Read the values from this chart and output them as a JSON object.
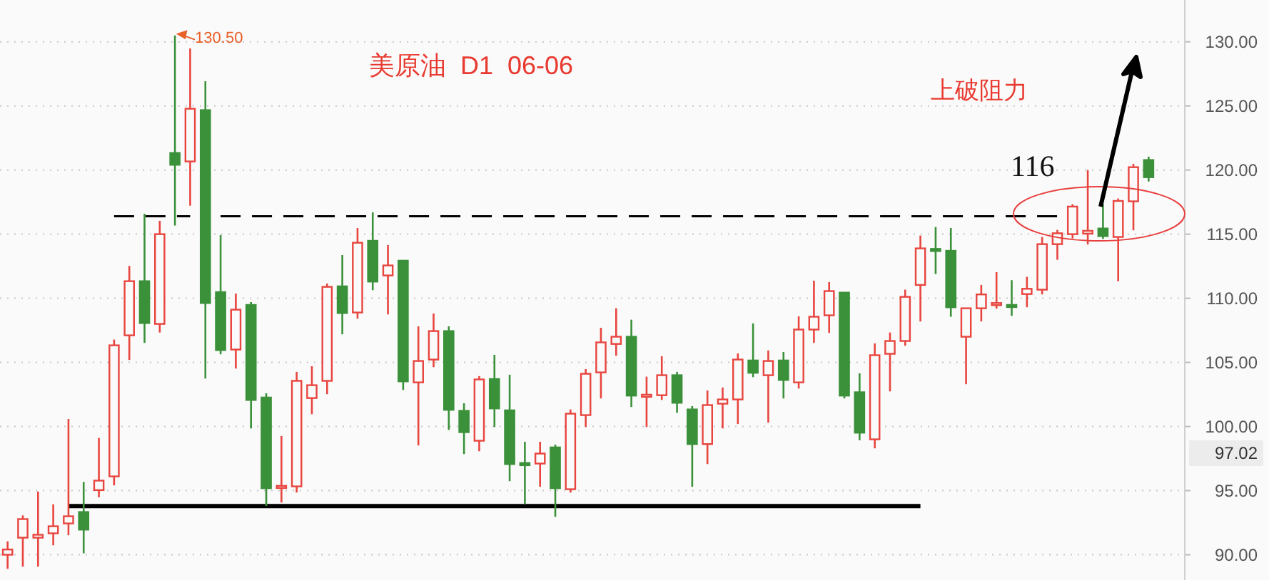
{
  "chart_data": {
    "type": "candlestick",
    "title": "美原油  D1  06-06",
    "categories": [
      null,
      null,
      null,
      null,
      null,
      null,
      null,
      null,
      null,
      null,
      null,
      null,
      null,
      null,
      null,
      null,
      null,
      null,
      null,
      null,
      null,
      null,
      null,
      null,
      null,
      null,
      null,
      null,
      null,
      null,
      null,
      null,
      null,
      null,
      null,
      null,
      null,
      null,
      null,
      null,
      null,
      null,
      null,
      null,
      null,
      null,
      null,
      null,
      null,
      null,
      null,
      null,
      null,
      null,
      null,
      null,
      null,
      null,
      null,
      null,
      null,
      null,
      null,
      null,
      null,
      null,
      null,
      null,
      null,
      null,
      null,
      null,
      null,
      null,
      null,
      null
    ],
    "ohlc": [
      [
        90.0,
        91.04,
        88.9,
        90.41
      ],
      [
        91.33,
        93.07,
        89.07,
        92.78
      ],
      [
        91.33,
        94.93,
        89.07,
        91.56
      ],
      [
        91.67,
        93.93,
        90.74,
        92.22
      ],
      [
        92.44,
        100.59,
        91.52,
        93.0
      ],
      [
        93.33,
        95.67,
        90.11,
        91.96
      ],
      [
        95.04,
        99.11,
        94.48,
        95.78
      ],
      [
        96.11,
        106.78,
        95.41,
        106.33
      ],
      [
        107.11,
        112.52,
        105.19,
        111.33
      ],
      [
        111.33,
        116.59,
        106.52,
        108.07
      ],
      [
        108.0,
        116.04,
        107.33,
        115.0
      ],
      [
        121.33,
        130.5,
        115.67,
        120.41
      ],
      [
        120.67,
        129.48,
        117.22,
        124.78
      ],
      [
        124.67,
        126.93,
        103.74,
        109.63
      ],
      [
        110.48,
        114.93,
        105.63,
        105.96
      ],
      [
        106.0,
        110.37,
        104.52,
        109.11
      ],
      [
        109.48,
        109.7,
        99.85,
        102.07
      ],
      [
        102.26,
        102.59,
        93.81,
        95.19
      ],
      [
        95.22,
        99.26,
        94.07,
        95.37
      ],
      [
        95.33,
        104.26,
        94.85,
        103.56
      ],
      [
        102.22,
        104.7,
        100.96,
        103.22
      ],
      [
        103.56,
        111.15,
        102.52,
        110.89
      ],
      [
        110.93,
        113.37,
        107.19,
        108.85
      ],
      [
        108.89,
        115.48,
        108.41,
        114.33
      ],
      [
        114.48,
        116.7,
        110.63,
        111.3
      ],
      [
        111.78,
        114.15,
        108.74,
        112.56
      ],
      [
        112.93,
        112.93,
        102.85,
        103.52
      ],
      [
        103.44,
        107.81,
        98.52,
        105.11
      ],
      [
        105.22,
        108.81,
        104.63,
        107.44
      ],
      [
        107.44,
        107.81,
        99.74,
        101.3
      ],
      [
        101.22,
        101.81,
        97.85,
        99.56
      ],
      [
        98.89,
        103.93,
        98.07,
        103.67
      ],
      [
        103.7,
        105.59,
        99.96,
        101.41
      ],
      [
        101.26,
        104.04,
        95.74,
        97.07
      ],
      [
        97.15,
        98.81,
        93.93,
        97.07
      ],
      [
        97.11,
        98.81,
        95.3,
        97.89
      ],
      [
        98.37,
        98.59,
        92.96,
        95.19
      ],
      [
        95.11,
        101.33,
        94.85,
        101.0
      ],
      [
        100.89,
        104.48,
        99.96,
        104.11
      ],
      [
        104.22,
        107.7,
        102.19,
        106.56
      ],
      [
        106.44,
        109.22,
        105.52,
        107.0
      ],
      [
        107.0,
        108.33,
        101.52,
        102.41
      ],
      [
        102.33,
        103.89,
        99.96,
        102.48
      ],
      [
        102.44,
        105.48,
        102.07,
        104.0
      ],
      [
        104.0,
        104.26,
        101.07,
        101.85
      ],
      [
        101.33,
        101.59,
        95.3,
        98.63
      ],
      [
        98.63,
        102.81,
        97.07,
        101.67
      ],
      [
        101.78,
        103.04,
        99.85,
        102.11
      ],
      [
        102.11,
        105.7,
        100.19,
        105.22
      ],
      [
        105.15,
        108.04,
        103.85,
        104.19
      ],
      [
        104.0,
        105.93,
        100.3,
        105.11
      ],
      [
        105.15,
        105.81,
        102.19,
        103.63
      ],
      [
        103.44,
        108.59,
        102.96,
        107.56
      ],
      [
        107.56,
        111.37,
        106.52,
        108.56
      ],
      [
        108.67,
        111.26,
        107.3,
        110.56
      ],
      [
        110.44,
        110.44,
        102.19,
        102.41
      ],
      [
        102.67,
        104.15,
        98.93,
        99.52
      ],
      [
        99.0,
        106.48,
        98.3,
        105.56
      ],
      [
        105.67,
        107.33,
        102.74,
        106.67
      ],
      [
        106.67,
        110.67,
        106.3,
        110.11
      ],
      [
        111.04,
        114.89,
        108.19,
        113.89
      ],
      [
        113.85,
        115.56,
        111.89,
        113.74
      ],
      [
        113.7,
        115.48,
        108.56,
        109.3
      ],
      [
        107.0,
        109.22,
        103.3,
        109.22
      ],
      [
        109.22,
        111.04,
        108.19,
        110.3
      ],
      [
        109.52,
        112.04,
        109.19,
        109.63
      ],
      [
        109.48,
        111.41,
        108.63,
        109.37
      ],
      [
        110.33,
        111.67,
        109.3,
        110.74
      ],
      [
        110.67,
        114.78,
        110.3,
        114.22
      ],
      [
        114.22,
        115.33,
        113.0,
        115.07
      ],
      [
        115.0,
        117.33,
        114.67,
        117.15
      ],
      [
        115.04,
        120.0,
        114.19,
        115.26
      ],
      [
        115.44,
        117.33,
        114.63,
        114.85
      ],
      [
        114.78,
        117.78,
        111.33,
        117.59
      ],
      [
        117.56,
        120.48,
        115.3,
        120.22
      ],
      [
        120.78,
        121.04,
        119.11,
        119.44
      ]
    ],
    "colors": [
      "#e8453f",
      "#e8453f",
      "#e8453f",
      "#e8453f",
      "#e8453f",
      "#3a913a",
      "#e8453f",
      "#e8453f",
      "#e8453f",
      "#3a913a",
      "#e8453f",
      "#3a913a",
      "#e8453f",
      "#3a913a",
      "#3a913a",
      "#e8453f",
      "#3a913a",
      "#3a913a",
      "#e8453f",
      "#e8453f",
      "#e8453f",
      "#e8453f",
      "#3a913a",
      "#e8453f",
      "#3a913a",
      "#e8453f",
      "#3a913a",
      "#e8453f",
      "#e8453f",
      "#3a913a",
      "#3a913a",
      "#e8453f",
      "#3a913a",
      "#3a913a",
      "#3a913a",
      "#e8453f",
      "#3a913a",
      "#e8453f",
      "#e8453f",
      "#e8453f",
      "#e8453f",
      "#3a913a",
      "#e8453f",
      "#e8453f",
      "#3a913a",
      "#3a913a",
      "#e8453f",
      "#e8453f",
      "#e8453f",
      "#3a913a",
      "#e8453f",
      "#3a913a",
      "#e8453f",
      "#e8453f",
      "#e8453f",
      "#3a913a",
      "#3a913a",
      "#e8453f",
      "#e8453f",
      "#e8453f",
      "#e8453f",
      "#3a913a",
      "#3a913a",
      "#e8453f",
      "#e8453f",
      "#e8453f",
      "#3a913a",
      "#e8453f",
      "#e8453f",
      "#e8453f",
      "#e8453f",
      "#e8453f",
      "#3a913a",
      "#e8453f",
      "#e8453f",
      "#3a913a"
    ],
    "series": [
      {
        "type": "line",
        "color": "#000000",
        "line_style": "dashed",
        "values": [
          null,
          null,
          null,
          null,
          null,
          null,
          null,
          116.4,
          116.4,
          116.4,
          116.4,
          116.4,
          116.4,
          null,
          116.4,
          116.4,
          116.4,
          116.4,
          116.4,
          116.4,
          116.4,
          116.4,
          116.4,
          116.4,
          116.4,
          116.4,
          116.4,
          116.4,
          116.4,
          116.4,
          116.4,
          116.4,
          116.4,
          116.4,
          116.4,
          116.4,
          116.4,
          116.4,
          116.4,
          116.4,
          116.4,
          116.4,
          116.4,
          116.4,
          116.4,
          116.4,
          116.4,
          116.4,
          116.4,
          116.4,
          116.4,
          116.4,
          116.4,
          116.4,
          116.4,
          116.4,
          116.4,
          116.4,
          116.4,
          116.4,
          116.4,
          116.4,
          116.4,
          116.4,
          116.4,
          116.4,
          116.4,
          116.4,
          116.4,
          116.4,
          null,
          null,
          null,
          null,
          null,
          null
        ]
      },
      {
        "type": "line",
        "color": "#000000",
        "line_style": "solid",
        "values": [
          null,
          null,
          null,
          null,
          93.8,
          93.8,
          93.8,
          93.8,
          93.8,
          93.8,
          93.8,
          93.8,
          93.8,
          93.8,
          93.8,
          93.8,
          93.8,
          93.8,
          93.8,
          93.8,
          93.8,
          93.8,
          93.8,
          93.8,
          93.8,
          93.8,
          93.8,
          93.8,
          93.8,
          93.8,
          93.8,
          93.8,
          93.8,
          93.8,
          93.8,
          93.8,
          93.8,
          93.8,
          93.8,
          93.8,
          93.8,
          93.8,
          93.8,
          93.8,
          93.8,
          93.8,
          93.8,
          93.8,
          93.8,
          93.8,
          93.8,
          93.8,
          93.8,
          93.8,
          93.8,
          93.8,
          93.8,
          93.8,
          93.8,
          93.8,
          93.8,
          null,
          null,
          null,
          null,
          null,
          null,
          null,
          null,
          null,
          null,
          null,
          null,
          null,
          null,
          null
        ]
      }
    ],
    "ylim": [
      88.03,
      133.26
    ],
    "yticks": [
      {
        "value": 90,
        "label": "90.00"
      },
      {
        "value": 95,
        "label": "95.00"
      },
      {
        "value": 100,
        "label": "100.00"
      },
      {
        "value": 105,
        "label": "105.00"
      },
      {
        "value": 110,
        "label": "110.00"
      },
      {
        "value": 115,
        "label": "115.00"
      },
      {
        "value": 120,
        "label": "120.00"
      },
      {
        "value": 125,
        "label": "125.00"
      },
      {
        "value": 130,
        "label": "130.00"
      }
    ],
    "grid": "y",
    "annotations": [
      "上破阻力",
      "130.50",
      {
        "text": "116",
        "y": 116.4
      },
      "97.02"
    ]
  }
}
